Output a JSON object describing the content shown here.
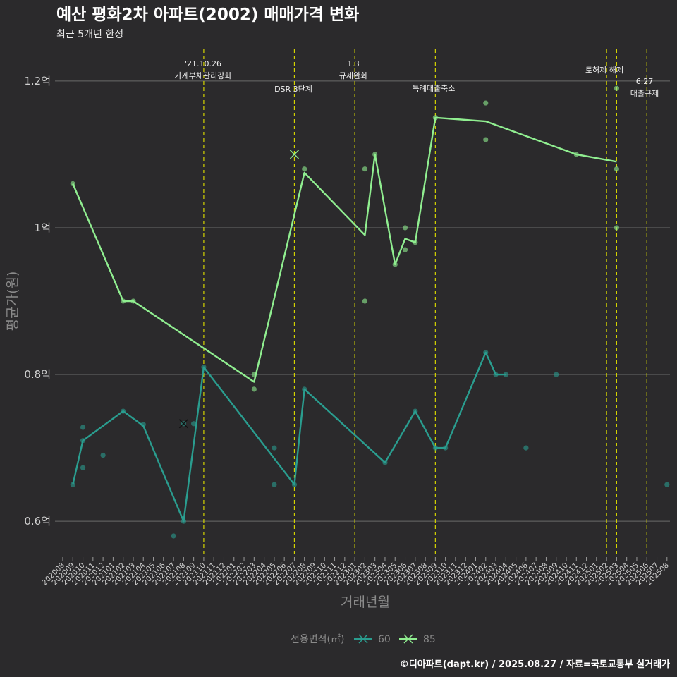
{
  "chart_data": {
    "type": "line",
    "title": "예산 평화2차 아파트(2002) 매매가격 변화",
    "subtitle": "최근 5개년 한정",
    "xlabel": "거래년월",
    "ylabel": "평균가(원)",
    "caption": "©디아파트(dapt.kr) / 2025.08.27 / 자료=국토교통부 실거래가",
    "ylim": [
      0.555,
      1.245
    ],
    "yticks": [
      {
        "value": 0.6,
        "label": "0.6억"
      },
      {
        "value": 0.8,
        "label": "0.8억"
      },
      {
        "value": 1.0,
        "label": "1억"
      },
      {
        "value": 1.2,
        "label": "1.2억"
      }
    ],
    "months": [
      "202008",
      "202009",
      "202010",
      "202011",
      "202012",
      "202101",
      "202102",
      "202103",
      "202104",
      "202105",
      "202106",
      "202107",
      "202108",
      "202109",
      "202110",
      "202111",
      "202112",
      "202201",
      "202202",
      "202203",
      "202204",
      "202205",
      "202206",
      "202207",
      "202208",
      "202209",
      "202210",
      "202211",
      "202212",
      "202301",
      "202302",
      "202303",
      "202304",
      "202305",
      "202306",
      "202307",
      "202308",
      "202309",
      "202310",
      "202311",
      "202312",
      "202401",
      "202402",
      "202403",
      "202404",
      "202405",
      "202406",
      "202407",
      "202408",
      "202409",
      "202410",
      "202411",
      "202412",
      "202501",
      "202502",
      "202503",
      "202504",
      "202505",
      "202506",
      "202507",
      "202508"
    ],
    "events": [
      {
        "month": "202110",
        "label1": "'21.10.26",
        "label2": "가계부채관리강화"
      },
      {
        "month": "202207",
        "label1": "DSR 3단계",
        "label2": ""
      },
      {
        "month": "202301",
        "label1": "1.3",
        "label2": "규제완화"
      },
      {
        "month": "202309",
        "label1": "특례대출축소",
        "label2": ""
      },
      {
        "month": "202502",
        "label1": "토허제 해제",
        "label2": ""
      },
      {
        "month": "202503",
        "label1": "",
        "label2": ""
      },
      {
        "month": "202506",
        "label1": "6.27",
        "label2": "대출규제"
      }
    ],
    "legend": {
      "title": "전용면적(㎡)",
      "items": [
        "60",
        "85"
      ]
    },
    "series": [
      {
        "name": "60",
        "color": "#2a9d8f",
        "line": [
          [
            "202009",
            0.65
          ],
          [
            "202010",
            0.71
          ],
          [
            "202102",
            0.75
          ],
          [
            "202104",
            0.73
          ],
          [
            "202108",
            0.6
          ],
          [
            "202110",
            0.81
          ],
          [
            "202207",
            0.65
          ],
          [
            "202208",
            0.78
          ],
          [
            "202304",
            0.68
          ],
          [
            "202307",
            0.75
          ],
          [
            "202309",
            0.7
          ],
          [
            "202310",
            0.7
          ],
          [
            "202402",
            0.83
          ],
          [
            "202403",
            0.8
          ],
          [
            "202404",
            0.8
          ]
        ],
        "points": [
          [
            "202009",
            0.65
          ],
          [
            "202010",
            0.673
          ],
          [
            "202010",
            0.71
          ],
          [
            "202010",
            0.728
          ],
          [
            "202012",
            0.69
          ],
          [
            "202102",
            0.75
          ],
          [
            "202104",
            0.732
          ],
          [
            "202107",
            0.58
          ],
          [
            "202108",
            0.6
          ],
          [
            "202108",
            0.733
          ],
          [
            "202109",
            0.733
          ],
          [
            "202110",
            0.81
          ],
          [
            "202205",
            0.65
          ],
          [
            "202205",
            0.7
          ],
          [
            "202207",
            0.65
          ],
          [
            "202208",
            0.78
          ],
          [
            "202304",
            0.68
          ],
          [
            "202307",
            0.75
          ],
          [
            "202309",
            0.7
          ],
          [
            "202310",
            0.7
          ],
          [
            "202402",
            0.83
          ],
          [
            "202403",
            0.8
          ],
          [
            "202404",
            0.8
          ],
          [
            "202406",
            0.7
          ],
          [
            "202409",
            0.8
          ],
          [
            "202508",
            0.65
          ]
        ],
        "crosses": [
          [
            "202108",
            0.733
          ]
        ]
      },
      {
        "name": "85",
        "color": "#90ee90",
        "line": [
          [
            "202009",
            1.06
          ],
          [
            "202102",
            0.9
          ],
          [
            "202103",
            0.9
          ],
          [
            "202203",
            0.79
          ],
          [
            "202208",
            1.075
          ],
          [
            "202302",
            0.99
          ],
          [
            "202303",
            1.1
          ],
          [
            "202305",
            0.95
          ],
          [
            "202306",
            0.985
          ],
          [
            "202307",
            0.98
          ],
          [
            "202309",
            1.15
          ],
          [
            "202402",
            1.145
          ],
          [
            "202411",
            1.1
          ],
          [
            "202503",
            1.09
          ]
        ],
        "points": [
          [
            "202009",
            1.06
          ],
          [
            "202102",
            0.9
          ],
          [
            "202103",
            0.9
          ],
          [
            "202203",
            0.8
          ],
          [
            "202203",
            0.78
          ],
          [
            "202208",
            1.08
          ],
          [
            "202302",
            1.08
          ],
          [
            "202302",
            0.9
          ],
          [
            "202303",
            1.1
          ],
          [
            "202305",
            0.95
          ],
          [
            "202306",
            1.0
          ],
          [
            "202306",
            0.97
          ],
          [
            "202307",
            0.98
          ],
          [
            "202309",
            1.15
          ],
          [
            "202402",
            1.17
          ],
          [
            "202402",
            1.12
          ],
          [
            "202411",
            1.1
          ],
          [
            "202503",
            1.19
          ],
          [
            "202503",
            1.08
          ],
          [
            "202503",
            1.0
          ]
        ],
        "crosses": [
          [
            "202207",
            1.1
          ]
        ]
      }
    ]
  }
}
